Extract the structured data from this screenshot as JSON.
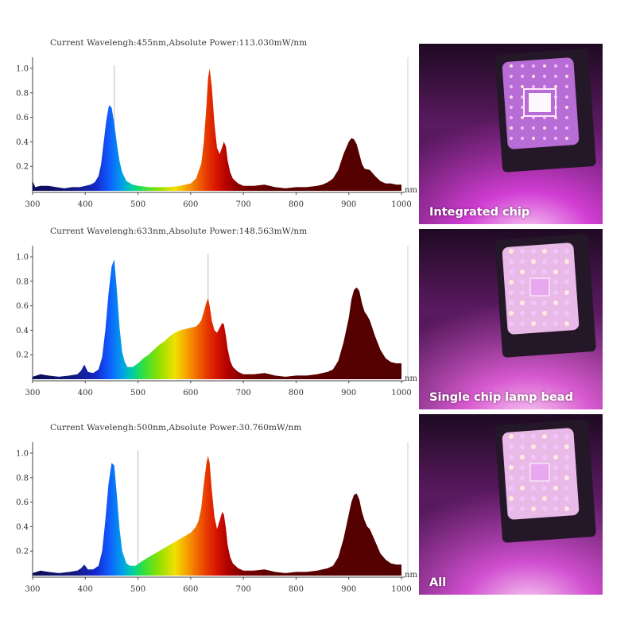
{
  "chart_data": [
    {
      "type": "area",
      "title": "Current Wavelengh:455nm,Absolute Power:113.030mW/nm",
      "xlabel": "nm",
      "ylabel": "",
      "xlim": [
        300,
        1000
      ],
      "ylim": [
        0,
        1.1
      ],
      "xticks": [
        300,
        400,
        500,
        600,
        700,
        800,
        900,
        1000
      ],
      "yticks": [
        0.2,
        0.4,
        0.6,
        0.8,
        1.0
      ],
      "cursor_nm": 455,
      "grid": false,
      "fill": "wavelength-spectrum-gradient",
      "series": [
        {
          "x": [
            300,
            305,
            315,
            330,
            345,
            360,
            375,
            390,
            400,
            410,
            418,
            425,
            430,
            435,
            440,
            445,
            450,
            455,
            460,
            465,
            470,
            478,
            490,
            500,
            520,
            540,
            560,
            580,
            600,
            610,
            620,
            625,
            630,
            633,
            636,
            640,
            645,
            650,
            655,
            660,
            663,
            667,
            670,
            675,
            680,
            690,
            700,
            720,
            740,
            750,
            760,
            780,
            800,
            820,
            840,
            850,
            860,
            870,
            880,
            890,
            900,
            905,
            910,
            915,
            920,
            925,
            930,
            940,
            950,
            960,
            970,
            980,
            990,
            1000
          ],
          "y": [
            0.08,
            0.03,
            0.04,
            0.04,
            0.03,
            0.02,
            0.03,
            0.03,
            0.04,
            0.05,
            0.07,
            0.12,
            0.22,
            0.4,
            0.58,
            0.7,
            0.68,
            0.55,
            0.38,
            0.24,
            0.15,
            0.08,
            0.05,
            0.04,
            0.03,
            0.03,
            0.03,
            0.04,
            0.06,
            0.1,
            0.22,
            0.4,
            0.7,
            0.92,
            1.0,
            0.85,
            0.55,
            0.35,
            0.3,
            0.36,
            0.4,
            0.36,
            0.25,
            0.15,
            0.1,
            0.06,
            0.04,
            0.04,
            0.05,
            0.04,
            0.03,
            0.02,
            0.03,
            0.03,
            0.04,
            0.05,
            0.07,
            0.1,
            0.17,
            0.3,
            0.4,
            0.43,
            0.42,
            0.38,
            0.3,
            0.22,
            0.18,
            0.17,
            0.12,
            0.08,
            0.06,
            0.06,
            0.05,
            0.05
          ]
        }
      ]
    },
    {
      "type": "area",
      "title": "Current Wavelengh:633nm,Absolute Power:148.563mW/nm",
      "xlabel": "nm",
      "ylabel": "",
      "xlim": [
        300,
        1000
      ],
      "ylim": [
        0,
        1.1
      ],
      "xticks": [
        300,
        400,
        500,
        600,
        700,
        800,
        900,
        1000
      ],
      "yticks": [
        0.2,
        0.4,
        0.6,
        0.8,
        1.0
      ],
      "cursor_nm": 633,
      "grid": false,
      "fill": "wavelength-spectrum-gradient",
      "series": [
        {
          "x": [
            300,
            315,
            330,
            350,
            370,
            385,
            392,
            398,
            405,
            415,
            425,
            432,
            438,
            444,
            450,
            455,
            460,
            465,
            470,
            475,
            480,
            490,
            500,
            510,
            520,
            530,
            540,
            550,
            560,
            570,
            580,
            590,
            600,
            610,
            615,
            620,
            625,
            630,
            633,
            636,
            640,
            645,
            650,
            655,
            660,
            663,
            667,
            670,
            675,
            680,
            690,
            700,
            720,
            740,
            750,
            760,
            780,
            800,
            820,
            840,
            860,
            870,
            880,
            890,
            900,
            905,
            910,
            915,
            920,
            925,
            930,
            935,
            940,
            950,
            960,
            970,
            980,
            990,
            1000
          ],
          "y": [
            0.02,
            0.04,
            0.03,
            0.02,
            0.03,
            0.04,
            0.07,
            0.12,
            0.06,
            0.05,
            0.08,
            0.18,
            0.4,
            0.7,
            0.92,
            0.98,
            0.72,
            0.42,
            0.22,
            0.14,
            0.1,
            0.1,
            0.13,
            0.17,
            0.2,
            0.24,
            0.28,
            0.31,
            0.35,
            0.38,
            0.4,
            0.41,
            0.42,
            0.43,
            0.45,
            0.48,
            0.55,
            0.63,
            0.66,
            0.6,
            0.48,
            0.4,
            0.38,
            0.42,
            0.46,
            0.45,
            0.35,
            0.25,
            0.15,
            0.1,
            0.06,
            0.04,
            0.04,
            0.05,
            0.04,
            0.03,
            0.02,
            0.03,
            0.03,
            0.04,
            0.06,
            0.08,
            0.15,
            0.3,
            0.5,
            0.65,
            0.73,
            0.75,
            0.72,
            0.62,
            0.55,
            0.52,
            0.48,
            0.35,
            0.24,
            0.17,
            0.14,
            0.13,
            0.13
          ]
        }
      ]
    },
    {
      "type": "area",
      "title": "Current Wavelengh:500nm,Absolute Power:30.760mW/nm",
      "xlabel": "nm",
      "ylabel": "",
      "xlim": [
        300,
        1000
      ],
      "ylim": [
        0,
        1.1
      ],
      "xticks": [
        300,
        400,
        500,
        600,
        700,
        800,
        900,
        1000
      ],
      "yticks": [
        0.2,
        0.4,
        0.6,
        0.8,
        1.0
      ],
      "cursor_nm": 500,
      "grid": false,
      "fill": "wavelength-spectrum-gradient",
      "series": [
        {
          "x": [
            300,
            315,
            330,
            350,
            370,
            385,
            392,
            398,
            405,
            415,
            425,
            432,
            438,
            444,
            450,
            455,
            460,
            465,
            470,
            478,
            485,
            495,
            505,
            520,
            540,
            560,
            580,
            600,
            610,
            615,
            620,
            625,
            630,
            633,
            636,
            640,
            645,
            650,
            655,
            660,
            663,
            667,
            670,
            675,
            680,
            690,
            700,
            720,
            740,
            750,
            760,
            780,
            800,
            820,
            840,
            860,
            870,
            880,
            890,
            900,
            905,
            910,
            915,
            920,
            925,
            930,
            935,
            940,
            950,
            960,
            970,
            980,
            990,
            1000
          ],
          "y": [
            0.02,
            0.04,
            0.03,
            0.02,
            0.03,
            0.04,
            0.06,
            0.09,
            0.05,
            0.05,
            0.08,
            0.2,
            0.45,
            0.75,
            0.92,
            0.9,
            0.65,
            0.38,
            0.2,
            0.1,
            0.08,
            0.08,
            0.11,
            0.15,
            0.2,
            0.25,
            0.3,
            0.35,
            0.4,
            0.45,
            0.55,
            0.75,
            0.92,
            0.98,
            0.92,
            0.7,
            0.48,
            0.38,
            0.45,
            0.52,
            0.5,
            0.38,
            0.25,
            0.15,
            0.1,
            0.06,
            0.04,
            0.04,
            0.05,
            0.04,
            0.03,
            0.02,
            0.03,
            0.03,
            0.04,
            0.06,
            0.08,
            0.15,
            0.3,
            0.5,
            0.6,
            0.66,
            0.67,
            0.62,
            0.52,
            0.45,
            0.4,
            0.38,
            0.28,
            0.18,
            0.13,
            0.1,
            0.09,
            0.09
          ]
        }
      ]
    }
  ],
  "photos": [
    {
      "label": "Integrated chip",
      "glow": "#d23ed4",
      "chip": "integrated"
    },
    {
      "label": "Single chip lamp bead",
      "glow": "#d85ad0",
      "chip": "beads"
    },
    {
      "label": "All",
      "glow": "#d14fd0",
      "chip": "beads"
    }
  ]
}
